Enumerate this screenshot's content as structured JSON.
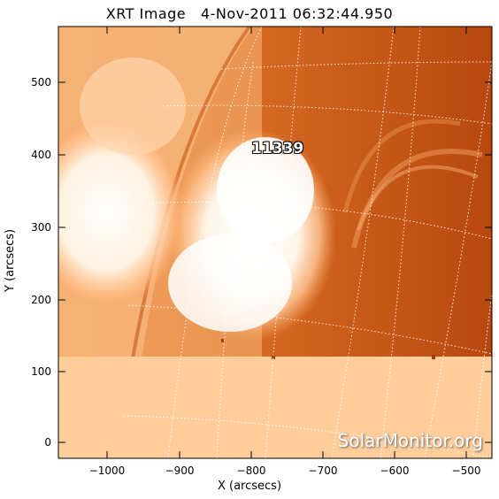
{
  "title": "XRT Image   4-Nov-2011 06:32:44.950",
  "axes": {
    "xlabel": "X (arcsecs)",
    "ylabel": "Y (arcsecs)",
    "xticks": [
      "−1000",
      "−900",
      "−800",
      "−700",
      "−600",
      "−500"
    ],
    "yticks": [
      "500",
      "400",
      "300",
      "200",
      "100",
      "0"
    ],
    "xlim": [
      -1065,
      -460
    ],
    "ylim": [
      -20,
      575
    ]
  },
  "region_label": "11339",
  "watermark": "SolarMonitor.org",
  "colors": {
    "dark_orange": "#b84a0e",
    "mid_orange": "#e0742a",
    "bright": "#ffffff",
    "missing_data": "#ffcd9a"
  }
}
